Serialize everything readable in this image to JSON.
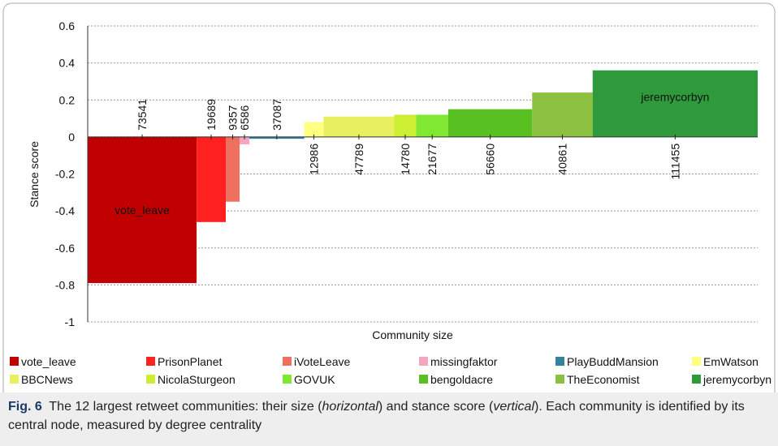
{
  "chart_data": {
    "type": "variable-width-bar",
    "y_label": "Stance score",
    "x_label": "Community size",
    "categories": [
      "vote_leave",
      "PrisonPlanet",
      "iVoteLeave",
      "missingfaktor",
      "PlayBuddMansion",
      "EmWatson",
      "BBCNews",
      "NicolaSturgeon",
      "GOVUK",
      "bengoldacre",
      "TheEconomist",
      "jeremycorbyn"
    ],
    "sizes": [
      73541,
      19689,
      9357,
      6586,
      37087,
      12986,
      47789,
      14780,
      21677,
      56660,
      40861,
      111455
    ],
    "values": [
      -0.79,
      -0.46,
      -0.35,
      -0.04,
      -0.01,
      0.08,
      0.11,
      0.12,
      0.12,
      0.15,
      0.24,
      0.36
    ],
    "colors": [
      "#c00000",
      "#ff2020",
      "#f07060",
      "#f4a6c0",
      "#31849b",
      "#ffff80",
      "#e8f060",
      "#ccee33",
      "#80e830",
      "#58c020",
      "#8cc040",
      "#2e9a3c"
    ],
    "ylim": [
      -1,
      0.6
    ],
    "yticks": [
      0.6,
      0.4,
      0.2,
      0,
      -0.2,
      -0.4,
      -0.6,
      -0.8,
      -1
    ],
    "grid": true
  },
  "caption": {
    "label": "Fig. 6",
    "parts": [
      "The 12 largest retweet communities: their size (",
      "horizontal",
      ") and stance score (",
      "vertical",
      "). Each community is identified by its central node, measured by degree centrality"
    ]
  }
}
